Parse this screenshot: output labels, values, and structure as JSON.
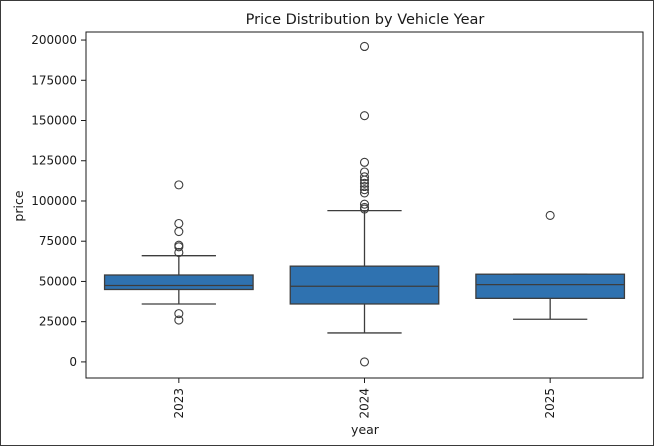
{
  "chart_data": {
    "type": "box",
    "title": "Price Distribution by Vehicle Year",
    "xlabel": "year",
    "ylabel": "price",
    "categories": [
      "2023",
      "2024",
      "2025"
    ],
    "ylim": [
      -10000,
      205000
    ],
    "yticks": [
      0,
      25000,
      50000,
      75000,
      100000,
      125000,
      150000,
      175000,
      200000
    ],
    "ytick_labels": [
      "0",
      "25000",
      "50000",
      "75000",
      "100000",
      "125000",
      "150000",
      "175000",
      "200000"
    ],
    "grid": false,
    "box_color": "#2f72b0",
    "boxes": [
      {
        "category": "2023",
        "whisker_low": 36000,
        "q1": 45000,
        "median": 47500,
        "q3": 54000,
        "whisker_high": 66000,
        "outliers": [
          110000,
          86000,
          81000,
          72500,
          71500,
          68000,
          30000,
          26000
        ]
      },
      {
        "category": "2024",
        "whisker_low": 18000,
        "q1": 36000,
        "median": 47000,
        "q3": 59500,
        "whisker_high": 94000,
        "outliers": [
          196000,
          153000,
          124000,
          118000,
          115000,
          113000,
          111000,
          109000,
          107000,
          105000,
          98000,
          96000,
          95000,
          0
        ]
      },
      {
        "category": "2025",
        "whisker_low": 26500,
        "q1": 39500,
        "median": 48000,
        "q3": 54500,
        "whisker_high": 54500,
        "outliers": [
          91000
        ]
      }
    ]
  }
}
